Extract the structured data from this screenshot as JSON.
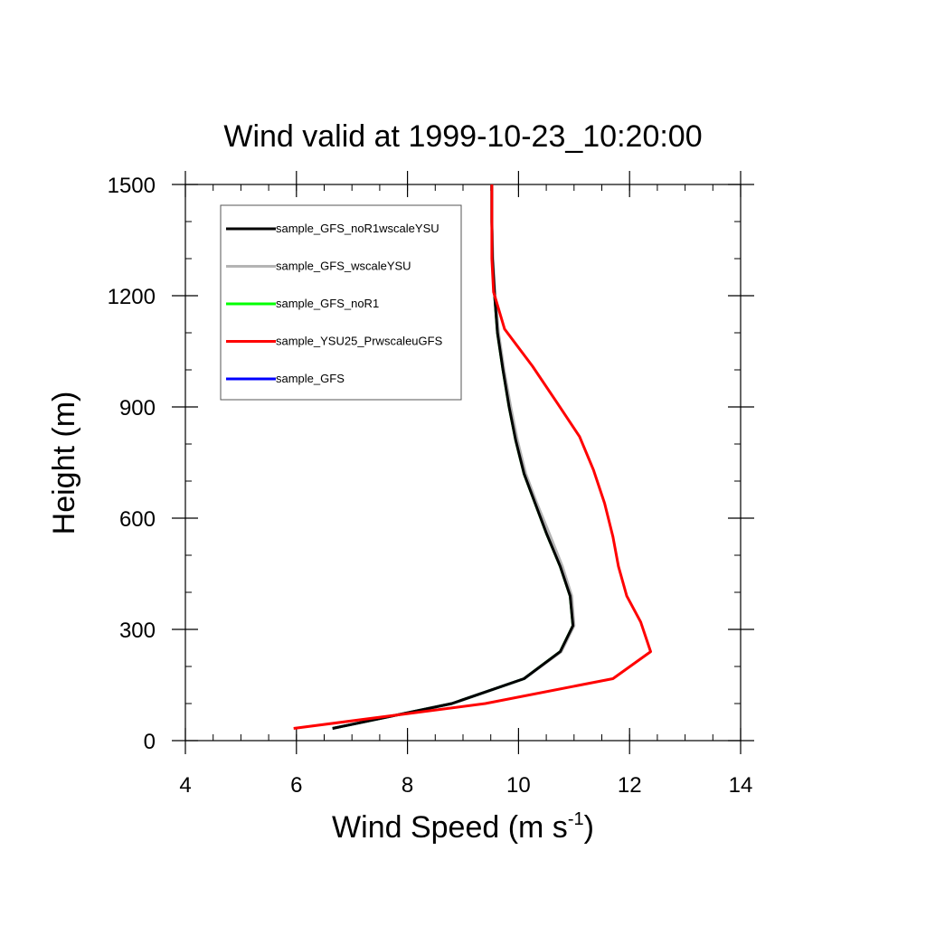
{
  "chart_data": {
    "type": "line",
    "title": "Wind valid at 1999-10-23_10:20:00",
    "xlabel_main": "Wind Speed (m s",
    "xlabel_sup": "-1",
    "xlabel_close": ")",
    "ylabel": "Height (m)",
    "xlim": [
      4,
      14
    ],
    "ylim": [
      0,
      1500
    ],
    "x_ticks": [
      4,
      6,
      8,
      10,
      12,
      14
    ],
    "y_ticks": [
      0,
      300,
      600,
      900,
      1200,
      1500
    ],
    "legend_position": "top-left",
    "series": [
      {
        "name": "sample_GFS_noR1wscaleYSU",
        "color": "#000000",
        "points": [
          [
            6.65,
            33
          ],
          [
            8.8,
            100
          ],
          [
            10.1,
            167
          ],
          [
            10.75,
            240
          ],
          [
            10.98,
            310
          ],
          [
            10.93,
            390
          ],
          [
            10.75,
            470
          ],
          [
            10.5,
            560
          ],
          [
            10.3,
            640
          ],
          [
            10.1,
            720
          ],
          [
            9.95,
            810
          ],
          [
            9.83,
            900
          ],
          [
            9.72,
            1000
          ],
          [
            9.62,
            1100
          ],
          [
            9.57,
            1200
          ],
          [
            9.53,
            1300
          ],
          [
            9.52,
            1400
          ],
          [
            9.52,
            1500
          ]
        ]
      },
      {
        "name": "sample_GFS_wscaleYSU",
        "color": "#b4b4b4",
        "points": [
          [
            6.65,
            33
          ],
          [
            8.8,
            100
          ],
          [
            10.1,
            167
          ],
          [
            10.77,
            240
          ],
          [
            11.0,
            310
          ],
          [
            10.96,
            390
          ],
          [
            10.79,
            470
          ],
          [
            10.55,
            560
          ],
          [
            10.33,
            640
          ],
          [
            10.13,
            720
          ],
          [
            9.98,
            810
          ],
          [
            9.86,
            900
          ],
          [
            9.74,
            1000
          ],
          [
            9.64,
            1100
          ],
          [
            9.58,
            1200
          ],
          [
            9.54,
            1300
          ],
          [
            9.52,
            1400
          ],
          [
            9.52,
            1500
          ]
        ]
      },
      {
        "name": "sample_GFS_noR1",
        "color": "#00ff00",
        "points": [
          [
            6.65,
            33
          ],
          [
            8.8,
            100
          ],
          [
            10.1,
            167
          ],
          [
            10.75,
            240
          ],
          [
            10.98,
            310
          ],
          [
            10.93,
            390
          ],
          [
            10.75,
            470
          ],
          [
            10.5,
            560
          ],
          [
            10.3,
            640
          ],
          [
            10.1,
            720
          ],
          [
            9.95,
            810
          ],
          [
            9.83,
            900
          ],
          [
            9.72,
            1000
          ],
          [
            9.62,
            1100
          ],
          [
            9.57,
            1200
          ],
          [
            9.53,
            1300
          ],
          [
            9.52,
            1400
          ],
          [
            9.52,
            1500
          ]
        ]
      },
      {
        "name": "sample_YSU25_PrwscaleuGFS",
        "color": "#ff0000",
        "points": [
          [
            5.95,
            33
          ],
          [
            9.4,
            100
          ],
          [
            11.7,
            167
          ],
          [
            12.38,
            240
          ],
          [
            12.2,
            320
          ],
          [
            11.95,
            390
          ],
          [
            11.8,
            470
          ],
          [
            11.7,
            550
          ],
          [
            11.55,
            640
          ],
          [
            11.35,
            730
          ],
          [
            11.1,
            820
          ],
          [
            10.7,
            910
          ],
          [
            10.25,
            1010
          ],
          [
            9.75,
            1110
          ],
          [
            9.55,
            1210
          ],
          [
            9.52,
            1300
          ],
          [
            9.52,
            1400
          ],
          [
            9.52,
            1500
          ]
        ]
      },
      {
        "name": "sample_GFS",
        "color": "#0000ff",
        "points": [
          [
            6.65,
            33
          ],
          [
            8.8,
            100
          ],
          [
            10.1,
            167
          ],
          [
            10.76,
            240
          ],
          [
            10.99,
            310
          ],
          [
            10.95,
            390
          ],
          [
            10.77,
            470
          ],
          [
            10.52,
            560
          ],
          [
            10.31,
            640
          ],
          [
            10.11,
            720
          ],
          [
            9.96,
            810
          ],
          [
            9.84,
            900
          ],
          [
            9.73,
            1000
          ],
          [
            9.63,
            1100
          ],
          [
            9.57,
            1200
          ],
          [
            9.53,
            1300
          ],
          [
            9.52,
            1400
          ],
          [
            9.52,
            1500
          ]
        ]
      }
    ],
    "draw_order": [
      4,
      2,
      1,
      0,
      3
    ]
  }
}
